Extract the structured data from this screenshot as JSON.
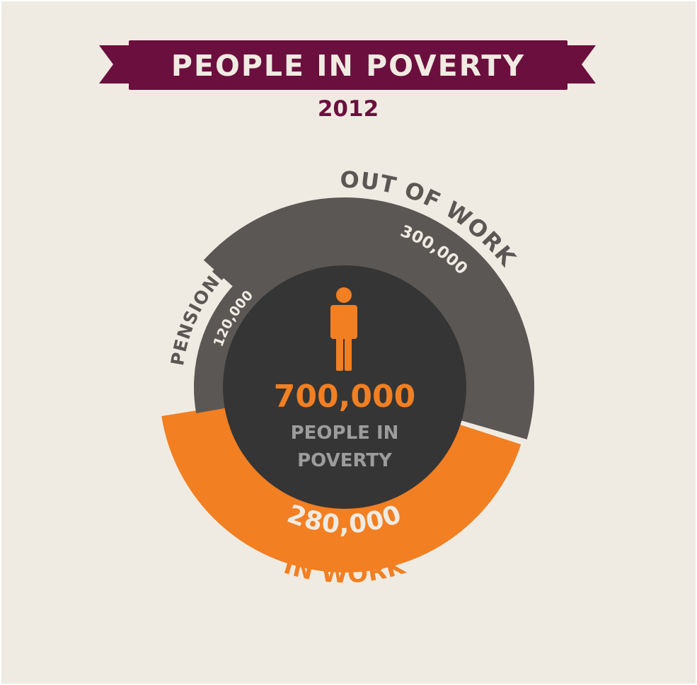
{
  "title": "PEOPLE IN POVERTY",
  "subtitle": "2012",
  "center": {
    "total": "700,000",
    "label_line1": "PEOPLE IN",
    "label_line2": "POVERTY"
  },
  "colors": {
    "background": "#f0ebe2",
    "banner": "#6b0f3e",
    "out_of_work": "#5b5754",
    "pensioners": "#5b5754",
    "in_work": "#f27f22",
    "center_disc": "#353535",
    "center_label": "#9c9c9c",
    "light_text": "#f0ebe2",
    "dark_text": "#5b5754"
  },
  "icon": "person-icon",
  "chart_data": {
    "type": "pie",
    "title": "PEOPLE IN POVERTY",
    "subtitle": "2012",
    "total": 700000,
    "slices": [
      {
        "name": "OUT OF WORK",
        "value": 300000,
        "value_label": "300,000",
        "color": "#5b5754"
      },
      {
        "name": "IN WORK",
        "value": 280000,
        "value_label": "280,000",
        "color": "#f27f22"
      },
      {
        "name": "PENSIONERS",
        "value": 120000,
        "value_label": "120,000",
        "color": "#5b5754"
      }
    ]
  }
}
